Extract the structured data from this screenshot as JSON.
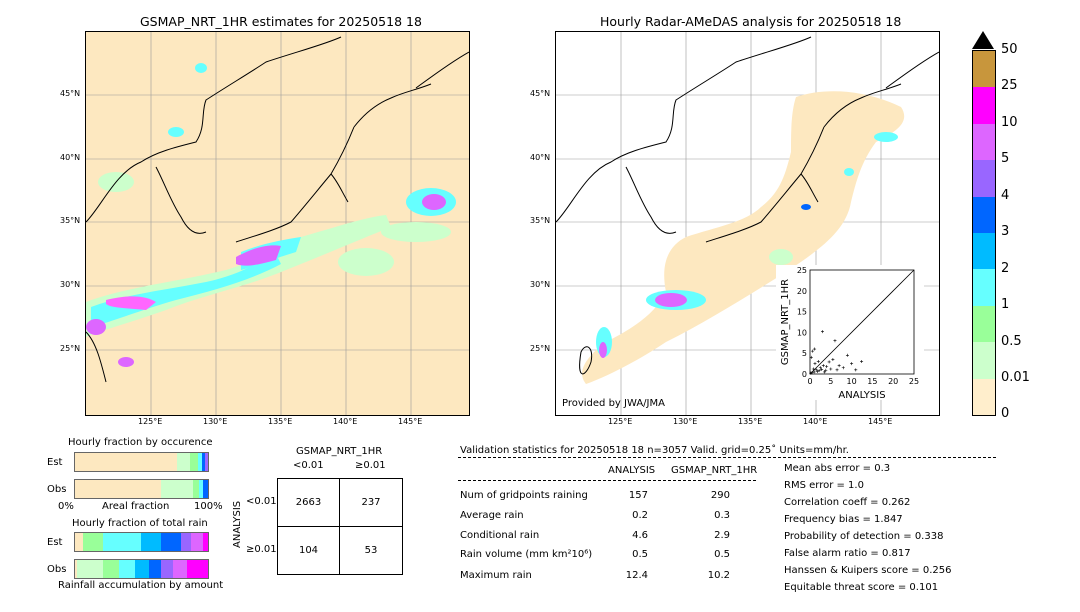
{
  "left_panel": {
    "title": "GSMAP_NRT_1HR estimates for 20250518 18",
    "lat_ticks": [
      "45°N",
      "40°N",
      "35°N",
      "30°N",
      "25°N"
    ],
    "lon_ticks": [
      "125°E",
      "130°E",
      "135°E",
      "140°E",
      "145°E"
    ]
  },
  "right_panel": {
    "title": "Hourly Radar-AMeDAS analysis for 20250518 18",
    "lat_ticks": [
      "45°N",
      "40°N",
      "35°N",
      "30°N",
      "25°N"
    ],
    "lon_ticks": [
      "125°E",
      "130°E",
      "135°E",
      "140°E",
      "145°E"
    ],
    "credit": "Provided by JWA/JMA"
  },
  "colorbar": {
    "labels": [
      "50",
      "25",
      "10",
      "5",
      "4",
      "3",
      "2",
      "1",
      "0.5",
      "0.01",
      "0"
    ],
    "colors": [
      "#c8963c",
      "#ff00ff",
      "#dd66ff",
      "#9966ff",
      "#0066ff",
      "#00bbff",
      "#66ffff",
      "#99ff99",
      "#ccffcc",
      "#ffeecc"
    ]
  },
  "fraction_occurrence": {
    "title": "Hourly fraction by occurence",
    "rows": [
      "Est",
      "Obs"
    ],
    "xlabels": [
      "0%",
      "Areal fraction",
      "100%"
    ]
  },
  "fraction_total": {
    "title": "Hourly fraction of total rain",
    "rows": [
      "Est",
      "Obs"
    ],
    "footer": "Rainfall accumulation by amount"
  },
  "contingency": {
    "col_title": "GSMAP_NRT_1HR",
    "col_labels": [
      "<0.01",
      "≥0.01"
    ],
    "row_title": "ANALYSIS",
    "row_labels": [
      "<0.01",
      "≥0.01"
    ],
    "cells": [
      [
        "2663",
        "237"
      ],
      [
        "104",
        "53"
      ]
    ]
  },
  "validation": {
    "header": "Validation statistics for 20250518 18  n=3057 Valid. grid=0.25˚ Units=mm/hr.",
    "col_analysis": "ANALYSIS",
    "col_gsmap": "GSMAP_NRT_1HR",
    "rows": [
      {
        "label": "Num of gridpoints raining",
        "analysis": "157",
        "gsmap": "290"
      },
      {
        "label": "Average rain",
        "analysis": "0.2",
        "gsmap": "0.3"
      },
      {
        "label": "Conditional rain",
        "analysis": "4.6",
        "gsmap": "2.9"
      },
      {
        "label": "Rain volume (mm km²10⁶)",
        "analysis": "0.5",
        "gsmap": "0.5"
      },
      {
        "label": "Maximum rain",
        "analysis": "12.4",
        "gsmap": "10.2"
      }
    ],
    "scores": [
      "Mean abs error =    0.3",
      "RMS error =    1.0",
      "Correlation coeff =  0.262",
      "Frequency bias =  1.847",
      "Probability of detection =  0.338",
      "False alarm ratio =  0.817",
      "Hanssen & Kuipers score =  0.256",
      "Equitable threat score =  0.101"
    ]
  },
  "chart_data": [
    {
      "type": "scatter",
      "xlabel": "ANALYSIS",
      "ylabel": "GSMAP_NRT_1HR",
      "xlim": [
        0,
        25
      ],
      "ylim": [
        0,
        25
      ],
      "xticks": [
        "0",
        "5",
        "10",
        "15",
        "20",
        "25"
      ],
      "yticks": [
        "0",
        "5",
        "10",
        "15",
        "20",
        "25"
      ],
      "points": [
        [
          0.5,
          0.3
        ],
        [
          0.8,
          1.2
        ],
        [
          1.0,
          0.5
        ],
        [
          1.2,
          2.5
        ],
        [
          1.5,
          1.0
        ],
        [
          2.0,
          3.0
        ],
        [
          2.2,
          0.8
        ],
        [
          2.5,
          1.5
        ],
        [
          3.0,
          10.2
        ],
        [
          3.2,
          2.0
        ],
        [
          3.5,
          0.5
        ],
        [
          4.0,
          1.8
        ],
        [
          4.6,
          2.9
        ],
        [
          5.0,
          1.2
        ],
        [
          5.5,
          3.5
        ],
        [
          6.0,
          8.0
        ],
        [
          6.5,
          1.0
        ],
        [
          7.0,
          2.0
        ],
        [
          8.0,
          1.5
        ],
        [
          9.0,
          4.5
        ],
        [
          10.0,
          2.5
        ],
        [
          11.0,
          1.0
        ],
        [
          12.4,
          3.0
        ],
        [
          0.3,
          4.0
        ],
        [
          0.6,
          5.5
        ],
        [
          1.1,
          6.0
        ],
        [
          0.2,
          0.2
        ],
        [
          1.8,
          0.6
        ],
        [
          2.8,
          1.1
        ],
        [
          3.8,
          0.9
        ]
      ]
    }
  ]
}
